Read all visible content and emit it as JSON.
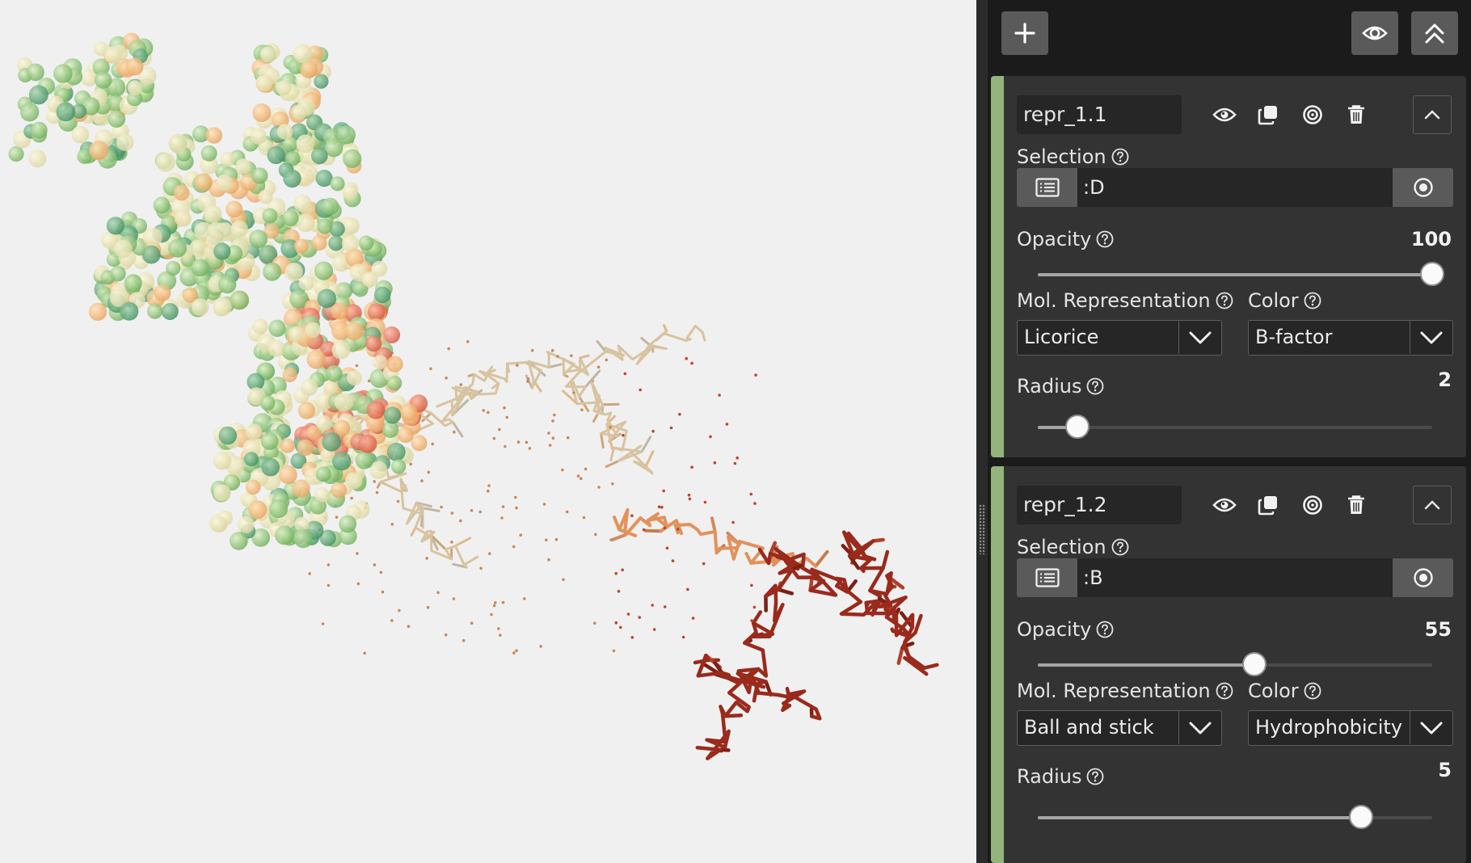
{
  "toolbar": {
    "add_icon": "plus-icon",
    "visibility_icon": "eye-icon",
    "collapse_all_icon": "double-chevron-up-icon"
  },
  "representations": [
    {
      "name": "repr_1.1",
      "selection_label": "Selection",
      "selection_value": ":D",
      "opacity_label": "Opacity",
      "opacity_value": "100",
      "opacity_fraction": 1.0,
      "mol_repr_label": "Mol. Representation",
      "mol_repr_value": "Licorice",
      "color_label": "Color",
      "color_value": "B-factor",
      "radius_label": "Radius",
      "radius_value": "2",
      "radius_fraction": 0.1
    },
    {
      "name": "repr_1.2",
      "selection_label": "Selection",
      "selection_value": ":B",
      "opacity_label": "Opacity",
      "opacity_value": "55",
      "opacity_fraction": 0.55,
      "mol_repr_label": "Mol. Representation",
      "mol_repr_value": "Ball and stick",
      "color_label": "Color",
      "color_value": "Hydrophobicity",
      "radius_label": "Radius",
      "radius_value": "5",
      "radius_fraction": 0.82
    }
  ],
  "colors": {
    "accent": "#93b47a",
    "panel_bg": "#1b1b1b",
    "card_bg": "#333333",
    "button_bg": "#5a5a5a"
  }
}
